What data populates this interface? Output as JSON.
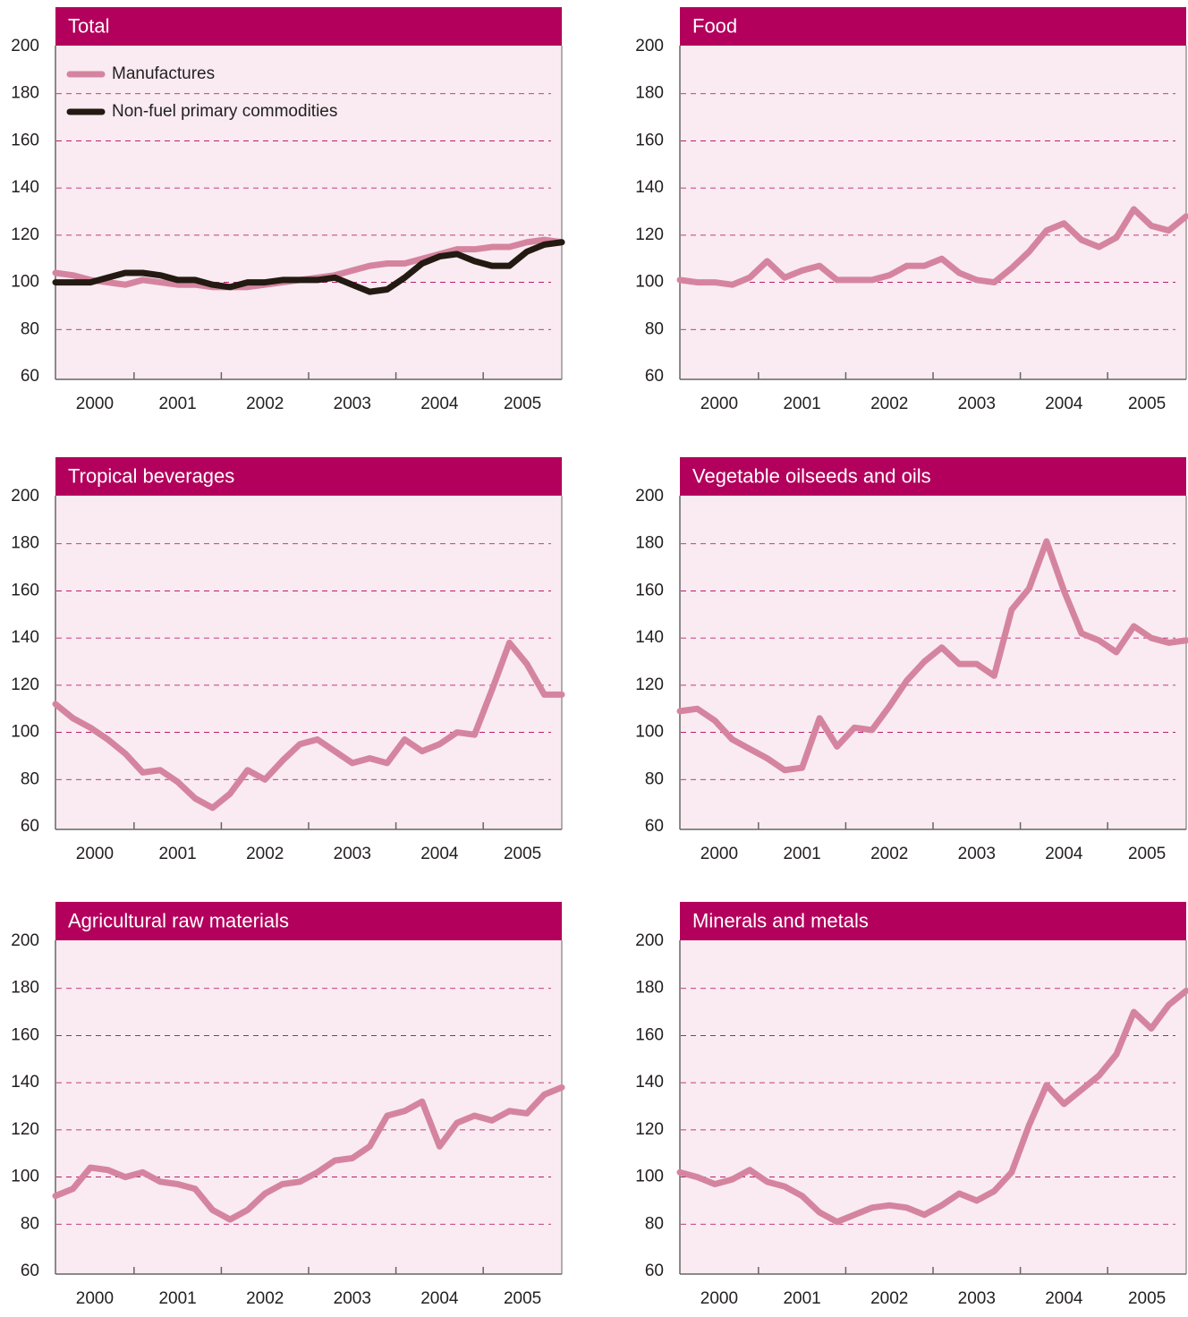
{
  "chart_data": [
    {
      "type": "line",
      "title": "Total",
      "categories": [
        "2000",
        "2001",
        "2002",
        "2003",
        "2004",
        "2005"
      ],
      "x": [
        2000.1,
        2000.3,
        2000.5,
        2000.7,
        2000.9,
        2001.1,
        2001.3,
        2001.5,
        2001.7,
        2001.9,
        2002.1,
        2002.3,
        2002.5,
        2002.7,
        2002.9,
        2003.1,
        2003.3,
        2003.5,
        2003.7,
        2003.9,
        2004.1,
        2004.3,
        2004.5,
        2004.7,
        2004.9,
        2005.1,
        2005.3,
        2005.5,
        2005.7,
        2005.9
      ],
      "xlim": [
        2000.1,
        2005.9
      ],
      "ylim": [
        60,
        200
      ],
      "yticks": [
        60,
        80,
        100,
        120,
        140,
        160,
        180,
        200
      ],
      "grid": true,
      "legend": "upper left",
      "series": [
        {
          "name": "Manufactures",
          "color": "#d5849f",
          "values": [
            104,
            103,
            101,
            100,
            99,
            101,
            100,
            99,
            99,
            98,
            98,
            98,
            99,
            100,
            101,
            102,
            103,
            105,
            107,
            108,
            108,
            110,
            112,
            114,
            114,
            115,
            115,
            117,
            118,
            117
          ]
        },
        {
          "name": "Non-fuel primary commodities",
          "color": "#231a12",
          "values": [
            100,
            100,
            100,
            102,
            104,
            104,
            103,
            101,
            101,
            99,
            98,
            100,
            100,
            101,
            101,
            101,
            102,
            99,
            96,
            97,
            102,
            108,
            111,
            112,
            109,
            107,
            107,
            113,
            116,
            117
          ]
        }
      ]
    },
    {
      "type": "line",
      "title": "Food",
      "categories": [
        "2000",
        "2001",
        "2002",
        "2003",
        "2004",
        "2005"
      ],
      "x": [
        2000.1,
        2000.3,
        2000.5,
        2000.7,
        2000.9,
        2001.1,
        2001.3,
        2001.5,
        2001.7,
        2001.9,
        2002.1,
        2002.3,
        2002.5,
        2002.7,
        2002.9,
        2003.1,
        2003.3,
        2003.5,
        2003.7,
        2003.9,
        2004.1,
        2004.3,
        2004.5,
        2004.7,
        2004.9,
        2005.1,
        2005.3,
        2005.5,
        2005.7,
        2005.9
      ],
      "xlim": [
        2000.1,
        2005.9
      ],
      "ylim": [
        60,
        200
      ],
      "yticks": [
        60,
        80,
        100,
        120,
        140,
        160,
        180,
        200
      ],
      "grid": true,
      "color": "#d5849f",
      "values": [
        101,
        100,
        100,
        99,
        102,
        109,
        102,
        105,
        107,
        101,
        101,
        101,
        103,
        107,
        107,
        110,
        104,
        101,
        100,
        106,
        113,
        122,
        125,
        118,
        115,
        119,
        131,
        124,
        122,
        128
      ]
    },
    {
      "type": "line",
      "title": "Tropical beverages",
      "categories": [
        "2000",
        "2001",
        "2002",
        "2003",
        "2004",
        "2005"
      ],
      "x": [
        2000.1,
        2000.3,
        2000.5,
        2000.7,
        2000.9,
        2001.1,
        2001.3,
        2001.5,
        2001.7,
        2001.9,
        2002.1,
        2002.3,
        2002.5,
        2002.7,
        2002.9,
        2003.1,
        2003.3,
        2003.5,
        2003.7,
        2003.9,
        2004.1,
        2004.3,
        2004.5,
        2004.7,
        2004.9,
        2005.1,
        2005.3,
        2005.5,
        2005.7,
        2005.9
      ],
      "xlim": [
        2000.1,
        2005.9
      ],
      "ylim": [
        60,
        200
      ],
      "yticks": [
        60,
        80,
        100,
        120,
        140,
        160,
        180,
        200
      ],
      "grid": true,
      "color": "#d5849f",
      "values": [
        112,
        106,
        102,
        97,
        91,
        83,
        84,
        79,
        72,
        68,
        74,
        84,
        80,
        88,
        95,
        97,
        92,
        87,
        89,
        87,
        97,
        92,
        95,
        100,
        99,
        118,
        138,
        129,
        116,
        116
      ]
    },
    {
      "type": "line",
      "title": "Vegetable oilseeds and oils",
      "categories": [
        "2000",
        "2001",
        "2002",
        "2003",
        "2004",
        "2005"
      ],
      "x": [
        2000.1,
        2000.3,
        2000.5,
        2000.7,
        2000.9,
        2001.1,
        2001.3,
        2001.5,
        2001.7,
        2001.9,
        2002.1,
        2002.3,
        2002.5,
        2002.7,
        2002.9,
        2003.1,
        2003.3,
        2003.5,
        2003.7,
        2003.9,
        2004.1,
        2004.3,
        2004.5,
        2004.7,
        2004.9,
        2005.1,
        2005.3,
        2005.5,
        2005.7,
        2005.9
      ],
      "xlim": [
        2000.1,
        2005.9
      ],
      "ylim": [
        60,
        200
      ],
      "yticks": [
        60,
        80,
        100,
        120,
        140,
        160,
        180,
        200
      ],
      "grid": true,
      "color": "#d5849f",
      "values": [
        109,
        110,
        105,
        97,
        93,
        89,
        84,
        85,
        106,
        94,
        102,
        101,
        111,
        122,
        130,
        136,
        129,
        129,
        124,
        152,
        161,
        181,
        160,
        142,
        139,
        134,
        145,
        140,
        138,
        139
      ]
    },
    {
      "type": "line",
      "title": "Agricultural raw materials",
      "categories": [
        "2000",
        "2001",
        "2002",
        "2003",
        "2004",
        "2005"
      ],
      "x": [
        2000.1,
        2000.3,
        2000.5,
        2000.7,
        2000.9,
        2001.1,
        2001.3,
        2001.5,
        2001.7,
        2001.9,
        2002.1,
        2002.3,
        2002.5,
        2002.7,
        2002.9,
        2003.1,
        2003.3,
        2003.5,
        2003.7,
        2003.9,
        2004.1,
        2004.3,
        2004.5,
        2004.7,
        2004.9,
        2005.1,
        2005.3,
        2005.5,
        2005.7,
        2005.9
      ],
      "xlim": [
        2000.1,
        2005.9
      ],
      "ylim": [
        60,
        200
      ],
      "yticks": [
        60,
        80,
        100,
        120,
        140,
        160,
        180,
        200
      ],
      "grid": true,
      "color": "#d5849f",
      "values": [
        92,
        95,
        104,
        103,
        100,
        102,
        98,
        97,
        95,
        86,
        82,
        86,
        93,
        97,
        98,
        102,
        107,
        108,
        113,
        126,
        128,
        132,
        113,
        123,
        126,
        124,
        128,
        127,
        135,
        138
      ]
    },
    {
      "type": "line",
      "title": "Minerals and metals",
      "categories": [
        "2000",
        "2001",
        "2002",
        "2003",
        "2004",
        "2005"
      ],
      "x": [
        2000.1,
        2000.3,
        2000.5,
        2000.7,
        2000.9,
        2001.1,
        2001.3,
        2001.5,
        2001.7,
        2001.9,
        2002.1,
        2002.3,
        2002.5,
        2002.7,
        2002.9,
        2003.1,
        2003.3,
        2003.5,
        2003.7,
        2003.9,
        2004.1,
        2004.3,
        2004.5,
        2004.7,
        2004.9,
        2005.1,
        2005.3,
        2005.5,
        2005.7,
        2005.9
      ],
      "xlim": [
        2000.1,
        2005.9
      ],
      "ylim": [
        60,
        200
      ],
      "yticks": [
        60,
        80,
        100,
        120,
        140,
        160,
        180,
        200
      ],
      "grid": true,
      "color": "#d5849f",
      "values": [
        102,
        100,
        97,
        99,
        103,
        98,
        96,
        92,
        85,
        81,
        84,
        87,
        88,
        87,
        84,
        88,
        93,
        90,
        94,
        102,
        122,
        139,
        131,
        137,
        143,
        152,
        170,
        163,
        173,
        179
      ]
    }
  ]
}
